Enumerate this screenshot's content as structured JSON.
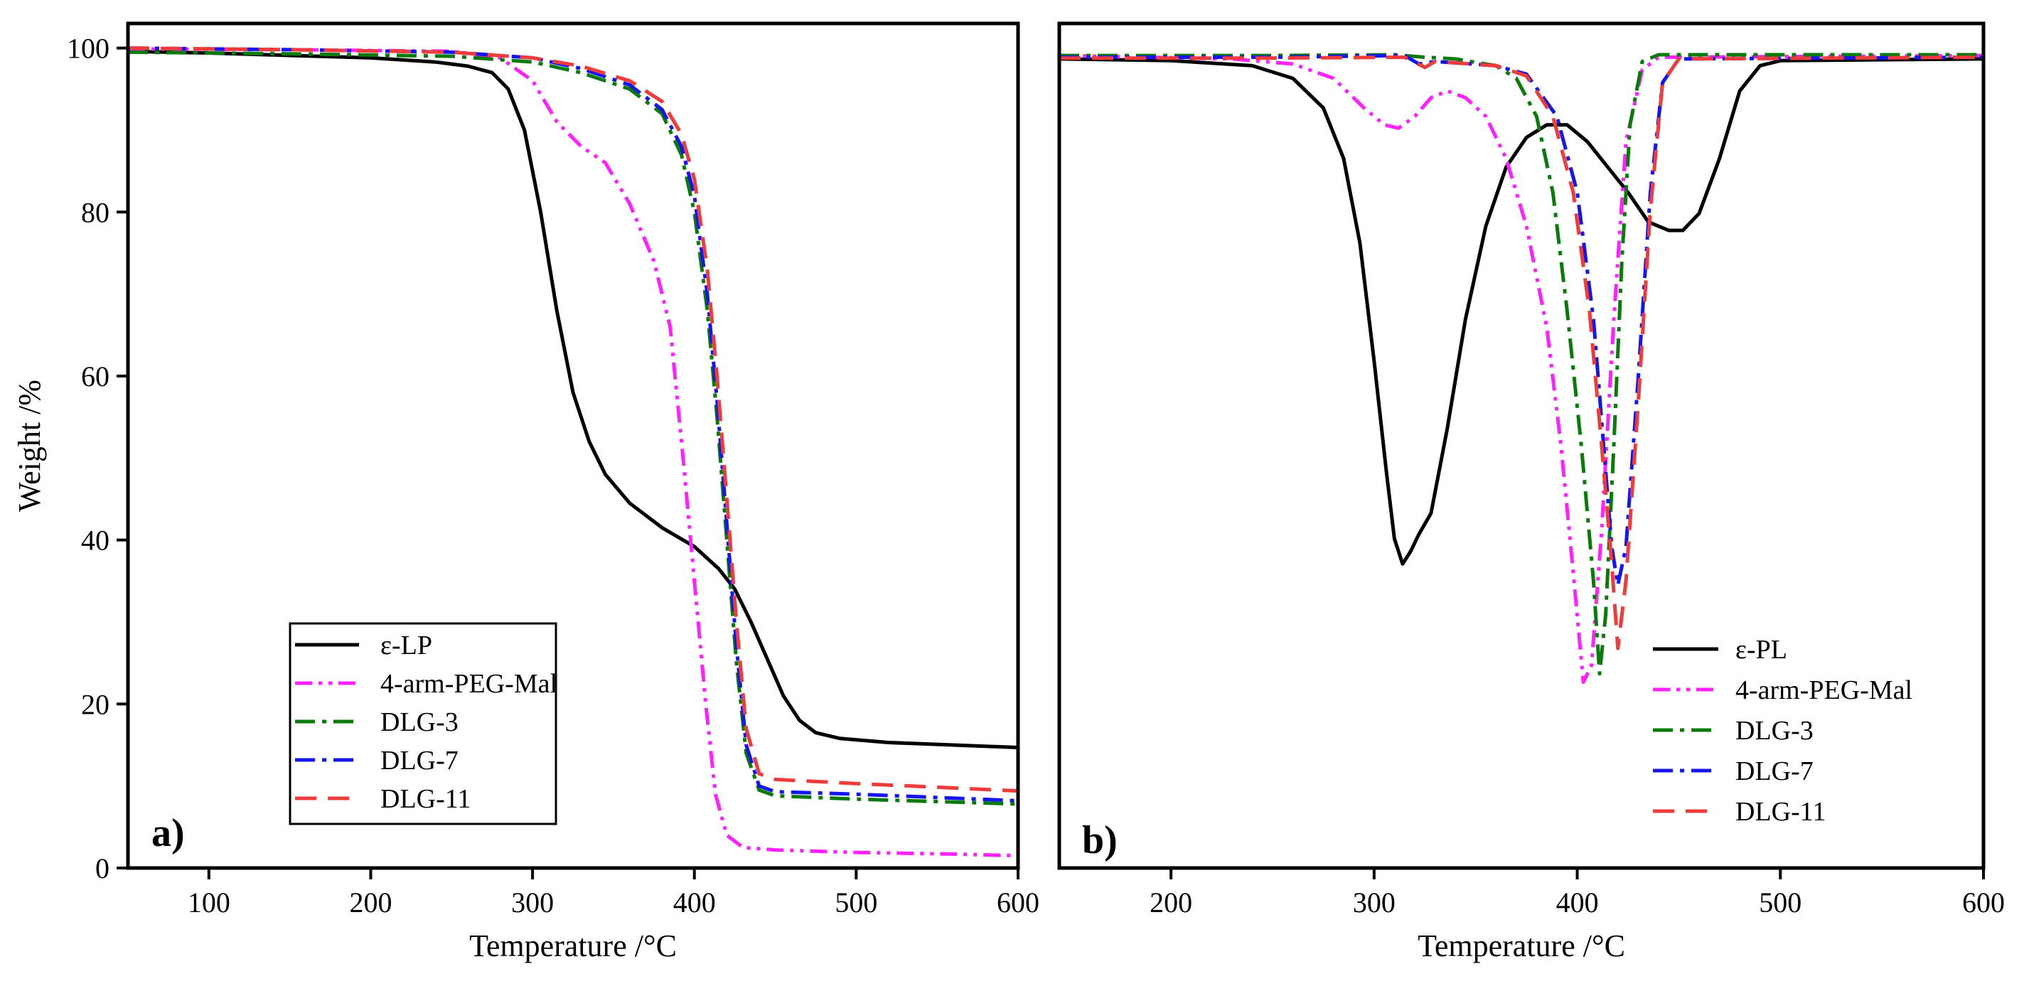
{
  "chart_data": [
    {
      "panel": "a)",
      "type": "line",
      "xlabel": "Temperature /",
      "xlabel_unit": "°C",
      "ylabel": "Weight /%",
      "xlim": [
        50,
        600
      ],
      "ylim": [
        0,
        103
      ],
      "x_ticks": [
        100,
        200,
        300,
        400,
        500,
        600
      ],
      "y_ticks": [
        0,
        20,
        40,
        60,
        80,
        100
      ],
      "legend_position": "bottom-center",
      "series": [
        {
          "name": "ε-LP",
          "color": "#000000",
          "dash": "solid",
          "points": [
            [
              50,
              99.6
            ],
            [
              100,
              99.4
            ],
            [
              150,
              99.1
            ],
            [
              200,
              98.8
            ],
            [
              240,
              98.3
            ],
            [
              260,
              97.8
            ],
            [
              275,
              97.0
            ],
            [
              285,
              95.0
            ],
            [
              295,
              90.0
            ],
            [
              305,
              80.0
            ],
            [
              315,
              68.0
            ],
            [
              325,
              58.0
            ],
            [
              335,
              52.0
            ],
            [
              345,
              48.0
            ],
            [
              360,
              44.5
            ],
            [
              380,
              41.5
            ],
            [
              400,
              39.2
            ],
            [
              415,
              36.5
            ],
            [
              425,
              34.0
            ],
            [
              435,
              30.0
            ],
            [
              445,
              25.5
            ],
            [
              455,
              21.0
            ],
            [
              465,
              18.0
            ],
            [
              475,
              16.5
            ],
            [
              490,
              15.8
            ],
            [
              520,
              15.3
            ],
            [
              560,
              15.0
            ],
            [
              600,
              14.7
            ]
          ]
        },
        {
          "name": "4-arm-PEG-Mal",
          "color": "#ff22ff",
          "dash": "dash-dot-dot",
          "points": [
            [
              50,
              99.9
            ],
            [
              150,
              99.8
            ],
            [
              250,
              99.6
            ],
            [
              280,
              98.8
            ],
            [
              300,
              96.0
            ],
            [
              315,
              91.0
            ],
            [
              330,
              88.0
            ],
            [
              345,
              86.0
            ],
            [
              360,
              81.0
            ],
            [
              375,
              74.0
            ],
            [
              385,
              66.0
            ],
            [
              393,
              50.0
            ],
            [
              400,
              35.0
            ],
            [
              407,
              20.0
            ],
            [
              413,
              9.0
            ],
            [
              420,
              4.0
            ],
            [
              430,
              2.5
            ],
            [
              450,
              2.2
            ],
            [
              500,
              1.9
            ],
            [
              560,
              1.7
            ],
            [
              600,
              1.5
            ]
          ]
        },
        {
          "name": "DLG-3",
          "color": "#0a7a0a",
          "dash": "dash-dot",
          "points": [
            [
              50,
              99.5
            ],
            [
              150,
              99.3
            ],
            [
              250,
              99.0
            ],
            [
              300,
              98.3
            ],
            [
              330,
              97.0
            ],
            [
              360,
              95.0
            ],
            [
              380,
              92.0
            ],
            [
              392,
              87.0
            ],
            [
              400,
              80.0
            ],
            [
              408,
              68.0
            ],
            [
              414,
              55.0
            ],
            [
              420,
              40.0
            ],
            [
              426,
              25.0
            ],
            [
              432,
              14.0
            ],
            [
              440,
              9.5
            ],
            [
              450,
              8.8
            ],
            [
              500,
              8.4
            ],
            [
              600,
              7.8
            ]
          ]
        },
        {
          "name": "DLG-7",
          "color": "#1515ee",
          "dash": "dash-dot",
          "points": [
            [
              50,
              100
            ],
            [
              150,
              99.8
            ],
            [
              250,
              99.5
            ],
            [
              300,
              98.8
            ],
            [
              330,
              97.5
            ],
            [
              360,
              95.5
            ],
            [
              380,
              92.5
            ],
            [
              392,
              88.0
            ],
            [
              400,
              82.0
            ],
            [
              408,
              70.0
            ],
            [
              414,
              57.0
            ],
            [
              420,
              42.0
            ],
            [
              426,
              27.0
            ],
            [
              432,
              15.0
            ],
            [
              440,
              10.0
            ],
            [
              450,
              9.3
            ],
            [
              500,
              9.0
            ],
            [
              600,
              8.2
            ]
          ]
        },
        {
          "name": "DLG-11",
          "color": "#ee3b3b",
          "dash": "dashed",
          "points": [
            [
              50,
              100
            ],
            [
              150,
              99.8
            ],
            [
              250,
              99.5
            ],
            [
              300,
              98.8
            ],
            [
              330,
              97.8
            ],
            [
              360,
              96.0
            ],
            [
              380,
              93.5
            ],
            [
              392,
              89.5
            ],
            [
              400,
              84.0
            ],
            [
              408,
              73.0
            ],
            [
              414,
              60.0
            ],
            [
              420,
              45.0
            ],
            [
              426,
              30.0
            ],
            [
              432,
              17.0
            ],
            [
              440,
              11.5
            ],
            [
              450,
              10.8
            ],
            [
              500,
              10.3
            ],
            [
              600,
              9.4
            ]
          ]
        }
      ]
    },
    {
      "panel": "b)",
      "type": "line",
      "xlabel": "Temperature /",
      "xlabel_unit": "°C",
      "xlim": [
        145,
        600
      ],
      "ylim": [
        0,
        100
      ],
      "x_ticks": [
        200,
        300,
        400,
        500,
        600
      ],
      "legend_position": "bottom-right",
      "series": [
        {
          "name": "ε-PL",
          "color": "#000000",
          "dash": "solid",
          "points": [
            [
              145,
              95.8
            ],
            [
              200,
              95.6
            ],
            [
              240,
              95.0
            ],
            [
              260,
              93.5
            ],
            [
              275,
              90.0
            ],
            [
              285,
              84.0
            ],
            [
              293,
              74.0
            ],
            [
              300,
              60.0
            ],
            [
              306,
              47.0
            ],
            [
              310,
              39.0
            ],
            [
              314,
              36.0
            ],
            [
              318,
              37.5
            ],
            [
              322,
              39.5
            ],
            [
              328,
              42.0
            ],
            [
              336,
              52.0
            ],
            [
              345,
              65.0
            ],
            [
              355,
              76.0
            ],
            [
              365,
              83.0
            ],
            [
              375,
              86.5
            ],
            [
              385,
              88.0
            ],
            [
              395,
              88.0
            ],
            [
              405,
              86.0
            ],
            [
              415,
              83.0
            ],
            [
              425,
              80.0
            ],
            [
              435,
              76.5
            ],
            [
              445,
              75.5
            ],
            [
              452,
              75.5
            ],
            [
              460,
              77.5
            ],
            [
              470,
              84.0
            ],
            [
              480,
              92.0
            ],
            [
              490,
              95.0
            ],
            [
              500,
              95.6
            ],
            [
              600,
              95.8
            ]
          ]
        },
        {
          "name": "4-arm-PEG-Mal",
          "color": "#ff22ff",
          "dash": "dash-dot-dot",
          "points": [
            [
              145,
              96.2
            ],
            [
              230,
              95.8
            ],
            [
              260,
              95.2
            ],
            [
              280,
              93.5
            ],
            [
              295,
              90.0
            ],
            [
              305,
              88.0
            ],
            [
              312,
              87.6
            ],
            [
              320,
              89.0
            ],
            [
              328,
              91.2
            ],
            [
              336,
              92.0
            ],
            [
              345,
              91.2
            ],
            [
              355,
              89.0
            ],
            [
              365,
              84.0
            ],
            [
              375,
              76.0
            ],
            [
              385,
              64.0
            ],
            [
              392,
              50.0
            ],
            [
              398,
              35.0
            ],
            [
              403,
              22.0
            ],
            [
              407,
              24.0
            ],
            [
              412,
              40.0
            ],
            [
              418,
              65.0
            ],
            [
              424,
              86.0
            ],
            [
              432,
              94.5
            ],
            [
              440,
              96.0
            ],
            [
              600,
              96.2
            ]
          ]
        },
        {
          "name": "DLG-3",
          "color": "#0a7a0a",
          "dash": "dash-dot",
          "points": [
            [
              145,
              96.2
            ],
            [
              250,
              96.2
            ],
            [
              310,
              96.3
            ],
            [
              325,
              96.0
            ],
            [
              340,
              95.8
            ],
            [
              360,
              95.0
            ],
            [
              370,
              93.5
            ],
            [
              380,
              89.0
            ],
            [
              388,
              80.0
            ],
            [
              395,
              66.0
            ],
            [
              402,
              50.0
            ],
            [
              408,
              34.0
            ],
            [
              411,
              23.0
            ],
            [
              414,
              30.0
            ],
            [
              418,
              50.0
            ],
            [
              422,
              72.0
            ],
            [
              426,
              88.0
            ],
            [
              432,
              95.5
            ],
            [
              440,
              96.3
            ],
            [
              600,
              96.3
            ]
          ]
        },
        {
          "name": "DLG-7",
          "color": "#1515ee",
          "dash": "dash-dot",
          "points": [
            [
              145,
              96.0
            ],
            [
              250,
              96.0
            ],
            [
              315,
              96.2
            ],
            [
              322,
              95.2
            ],
            [
              330,
              95.5
            ],
            [
              360,
              95.0
            ],
            [
              375,
              94.0
            ],
            [
              390,
              89.0
            ],
            [
              400,
              80.0
            ],
            [
              408,
              65.0
            ],
            [
              413,
              50.0
            ],
            [
              417,
              38.0
            ],
            [
              420,
              33.5
            ],
            [
              424,
              38.0
            ],
            [
              430,
              58.0
            ],
            [
              436,
              80.0
            ],
            [
              442,
              93.0
            ],
            [
              450,
              95.8
            ],
            [
              600,
              96.0
            ]
          ]
        },
        {
          "name": "DLG-11",
          "color": "#ee3b3b",
          "dash": "dashed",
          "points": [
            [
              145,
              95.9
            ],
            [
              250,
              95.9
            ],
            [
              315,
              96.0
            ],
            [
              325,
              94.8
            ],
            [
              330,
              95.5
            ],
            [
              360,
              95.0
            ],
            [
              375,
              93.8
            ],
            [
              388,
              89.0
            ],
            [
              398,
              80.0
            ],
            [
              406,
              66.0
            ],
            [
              412,
              50.0
            ],
            [
              417,
              36.0
            ],
            [
              420,
              26.0
            ],
            [
              424,
              34.0
            ],
            [
              430,
              55.0
            ],
            [
              436,
              78.0
            ],
            [
              442,
              93.0
            ],
            [
              450,
              95.8
            ],
            [
              600,
              96.0
            ]
          ]
        }
      ]
    }
  ]
}
